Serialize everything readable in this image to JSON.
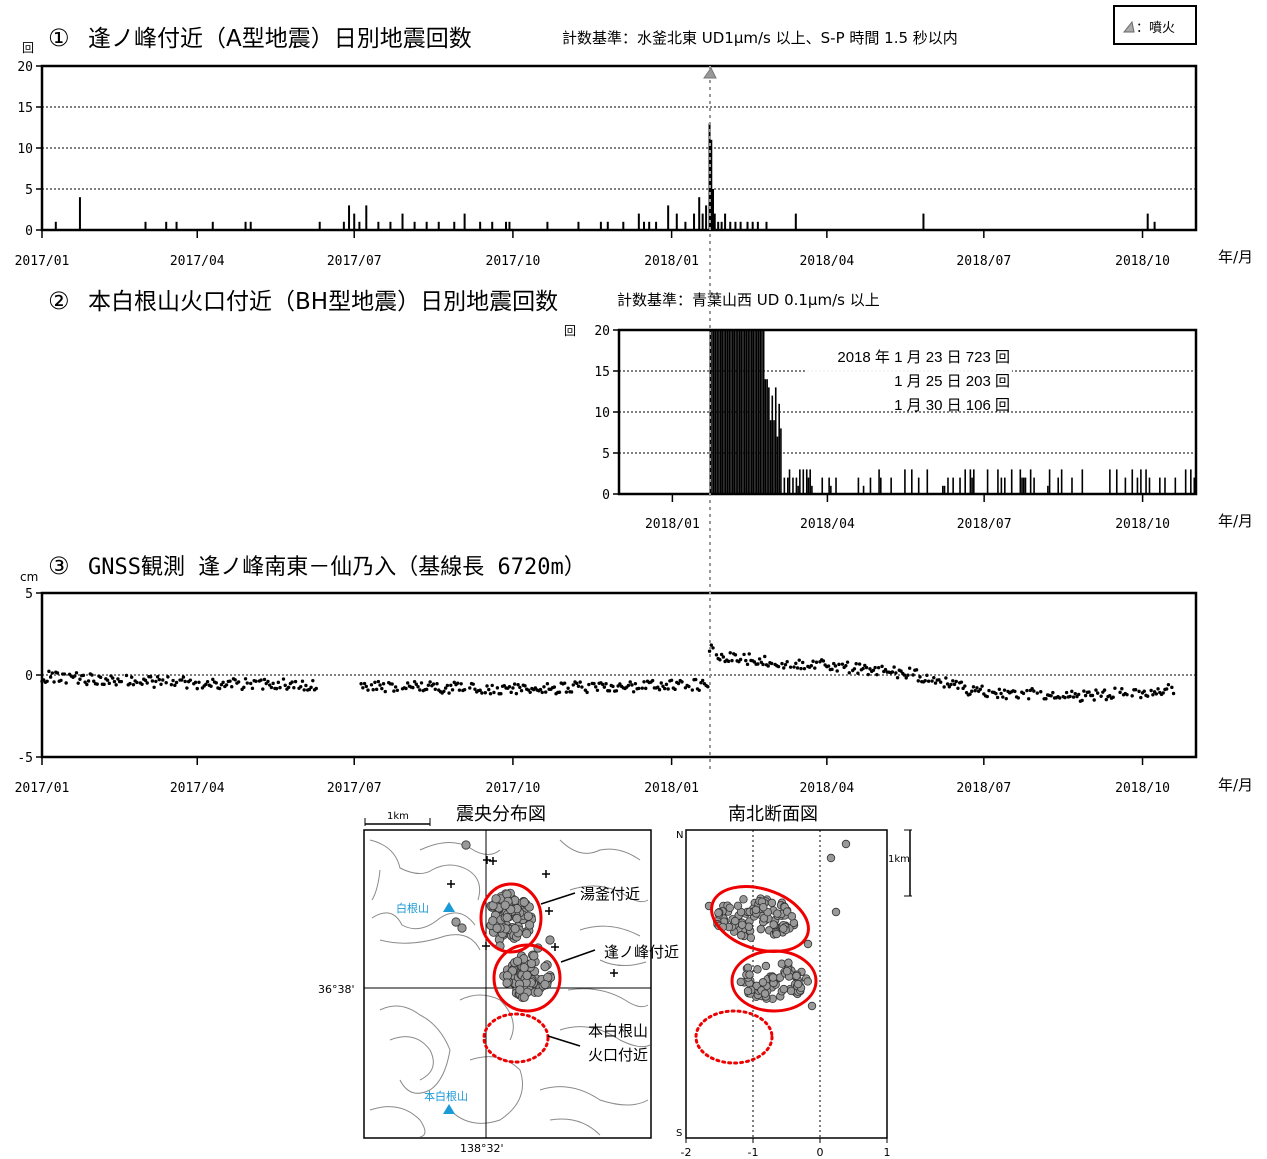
{
  "panel1": {
    "number": "①",
    "title": "逢ノ峰付近（A型地震）日別地震回数",
    "criteria": "計数基準：水釜北東 UD1μm/s 以上、S-P 時間 1.5 秒以内",
    "unit": "回",
    "legend": "：噴火",
    "axis_unit": "年/月"
  },
  "panel2": {
    "number": "②",
    "title": "本白根山火口付近（BH型地震）日別地震回数",
    "criteria": "計数基準：青葉山西 UD 0.1μm/s 以上",
    "unit": "回",
    "annotations": [
      "2018 年 1 月 23 日 723 回",
      "1 月 25 日 203 回",
      "1 月 30 日 106 回"
    ],
    "axis_unit": "年/月"
  },
  "panel3": {
    "number": "③",
    "title": "GNSS観測  逢ノ峰南東－仙乃入（基線長 6720m）",
    "unit": "cm",
    "axis_unit": "年/月"
  },
  "map": {
    "title": "震央分布図",
    "scale": "1km",
    "labels": {
      "shirane": "白根山",
      "motoshirane": "本白根山",
      "lat": "36°38'",
      "lon": "138°32'"
    },
    "callouts": [
      "湯釜付近",
      "逢ノ峰付近",
      "本白根山",
      "火口付近"
    ]
  },
  "section": {
    "title": "南北断面図",
    "north": "N",
    "south": "S",
    "scale": "1km",
    "xticks": [
      "-2",
      "-1",
      "0",
      "1"
    ]
  },
  "chart_data": [
    {
      "type": "bar",
      "title": "逢ノ峰付近（A型地震）日別地震回数",
      "ylabel": "回",
      "xlabel": "年/月",
      "x_range": [
        "2017-01-01",
        "2018-11-01"
      ],
      "ylim": [
        0,
        20
      ],
      "yticks": [
        0,
        5,
        10,
        15,
        20
      ],
      "xticks": [
        "2017/01",
        "2017/04",
        "2017/07",
        "2017/10",
        "2018/01",
        "2018/04",
        "2018/07",
        "2018/10"
      ],
      "grid": "horizontal dotted",
      "eruption_date": "2018-01-23",
      "series": [
        {
          "values": [
            [
              "2017-01-09",
              1
            ],
            [
              "2017-01-23",
              4
            ],
            [
              "2017-03-02",
              1
            ],
            [
              "2017-03-14",
              1
            ],
            [
              "2017-03-20",
              1
            ],
            [
              "2017-04-10",
              1
            ],
            [
              "2017-04-29",
              1
            ],
            [
              "2017-05-02",
              1
            ],
            [
              "2017-06-11",
              1
            ],
            [
              "2017-06-25",
              1
            ],
            [
              "2017-06-28",
              3
            ],
            [
              "2017-07-01",
              2
            ],
            [
              "2017-07-04",
              1
            ],
            [
              "2017-07-08",
              3
            ],
            [
              "2017-07-15",
              1
            ],
            [
              "2017-07-22",
              1
            ],
            [
              "2017-07-29",
              2
            ],
            [
              "2017-08-05",
              1
            ],
            [
              "2017-08-12",
              1
            ],
            [
              "2017-08-19",
              1
            ],
            [
              "2017-08-28",
              1
            ],
            [
              "2017-09-03",
              2
            ],
            [
              "2017-09-12",
              1
            ],
            [
              "2017-09-19",
              1
            ],
            [
              "2017-09-27",
              1
            ],
            [
              "2017-09-29",
              1
            ],
            [
              "2017-10-21",
              1
            ],
            [
              "2017-11-08",
              1
            ],
            [
              "2017-11-21",
              1
            ],
            [
              "2017-11-25",
              1
            ],
            [
              "2017-12-04",
              1
            ],
            [
              "2017-12-13",
              2
            ],
            [
              "2017-12-16",
              1
            ],
            [
              "2017-12-19",
              1
            ],
            [
              "2017-12-23",
              1
            ],
            [
              "2017-12-30",
              3
            ],
            [
              "2018-01-04",
              2
            ],
            [
              "2018-01-09",
              1
            ],
            [
              "2018-01-14",
              2
            ],
            [
              "2018-01-17",
              4
            ],
            [
              "2018-01-19",
              2
            ],
            [
              "2018-01-21",
              3
            ],
            [
              "2018-01-23",
              13
            ],
            [
              "2018-01-24",
              11
            ],
            [
              "2018-01-25",
              5
            ],
            [
              "2018-01-26",
              2
            ],
            [
              "2018-01-28",
              1
            ],
            [
              "2018-01-30",
              1
            ],
            [
              "2018-02-01",
              2
            ],
            [
              "2018-02-04",
              1
            ],
            [
              "2018-02-07",
              1
            ],
            [
              "2018-02-10",
              1
            ],
            [
              "2018-02-14",
              1
            ],
            [
              "2018-02-17",
              1
            ],
            [
              "2018-02-20",
              1
            ],
            [
              "2018-02-25",
              1
            ],
            [
              "2018-03-14",
              2
            ],
            [
              "2018-05-27",
              2
            ],
            [
              "2018-10-04",
              2
            ],
            [
              "2018-10-08",
              1
            ]
          ]
        }
      ]
    },
    {
      "type": "bar",
      "title": "本白根山火口付近（BH型地震）日別地震回数",
      "ylabel": "回",
      "xlabel": "年/月",
      "x_range": [
        "2017-12-01",
        "2018-11-01"
      ],
      "ylim": [
        0,
        20
      ],
      "yticks": [
        0,
        5,
        10,
        15,
        20
      ],
      "xticks": [
        "2018/01",
        "2018/04",
        "2018/07",
        "2018/10"
      ],
      "grid": "horizontal dotted",
      "annotations": [
        "2018 年 1 月 23 日 723 回",
        "1 月 25 日 203 回",
        "1 月 30 日 106 回"
      ]
    },
    {
      "type": "scatter",
      "title": "GNSS観測  逢ノ峰南東－仙乃入（基線長 6720m）",
      "ylabel": "cm",
      "xlabel": "年/月",
      "x_range": [
        "2017-01-01",
        "2018-11-01"
      ],
      "ylim": [
        -5,
        5
      ],
      "yticks": [
        -5,
        0,
        5
      ],
      "xticks": [
        "2017/01",
        "2017/04",
        "2017/07",
        "2017/10",
        "2018/01",
        "2018/04",
        "2018/07",
        "2018/10"
      ],
      "grid": "zero line dotted",
      "trend": [
        [
          "2017-01-01",
          -0.1
        ],
        [
          "2017-02-15",
          -0.35
        ],
        [
          "2017-04-15",
          -0.55
        ],
        [
          "2017-06-10",
          -0.6
        ],
        [
          "2017-06-20",
          null
        ],
        [
          "2017-07-05",
          -0.7
        ],
        [
          "2017-10-01",
          -0.85
        ],
        [
          "2018-01-22",
          -0.6
        ],
        [
          "2018-01-23",
          1.6
        ],
        [
          "2018-02-01",
          1.1
        ],
        [
          "2018-03-10",
          0.75
        ],
        [
          "2018-04-20",
          0.4
        ],
        [
          "2018-05-20",
          0.1
        ],
        [
          "2018-06-25",
          -1.0
        ],
        [
          "2018-08-20",
          -1.3
        ],
        [
          "2018-10-20",
          -0.9
        ]
      ]
    },
    {
      "type": "scatter",
      "title": "南北断面図",
      "xticks": [
        -2,
        -1,
        0,
        1
      ],
      "xlim": [
        -2,
        1
      ]
    }
  ]
}
